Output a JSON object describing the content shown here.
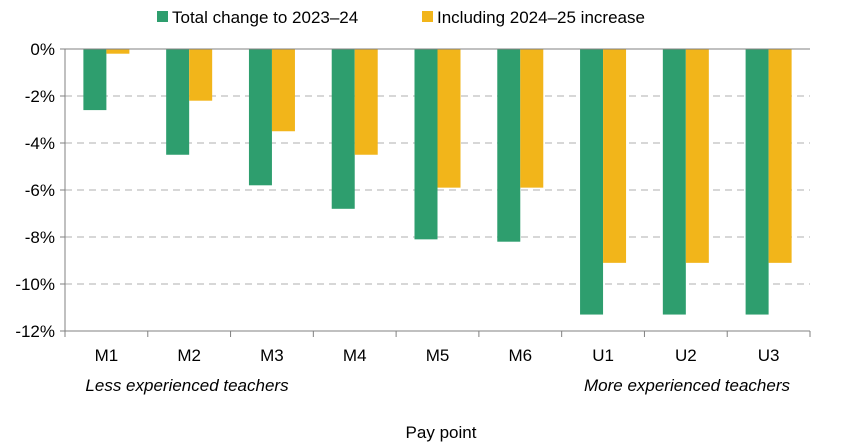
{
  "chart_data": {
    "type": "bar",
    "categories": [
      "M1",
      "M2",
      "M3",
      "M4",
      "M5",
      "M6",
      "U1",
      "U2",
      "U3"
    ],
    "series": [
      {
        "name": "Total change to 2023–24",
        "color": "#2e9e6e",
        "values": [
          -2.6,
          -4.5,
          -5.8,
          -6.8,
          -8.1,
          -8.2,
          -11.3,
          -11.3,
          -11.3
        ]
      },
      {
        "name": "Including 2024–25 increase",
        "color": "#f2b51a",
        "values": [
          -0.2,
          -2.2,
          -3.5,
          -4.5,
          -5.9,
          -5.9,
          -9.1,
          -9.1,
          -9.1
        ]
      }
    ],
    "ylim": [
      -12,
      0
    ],
    "yticks": [
      0,
      -2,
      -4,
      -6,
      -8,
      -10,
      -12
    ],
    "ytick_labels": [
      "0%",
      "-2%",
      "-4%",
      "-6%",
      "-8%",
      "-10%",
      "-12%"
    ],
    "xlabel": "Pay point",
    "ylabel": "",
    "grid": "horizontal dashed",
    "legend_position": "top",
    "annotations": {
      "left": "Less experienced teachers",
      "right": "More experienced teachers"
    }
  }
}
